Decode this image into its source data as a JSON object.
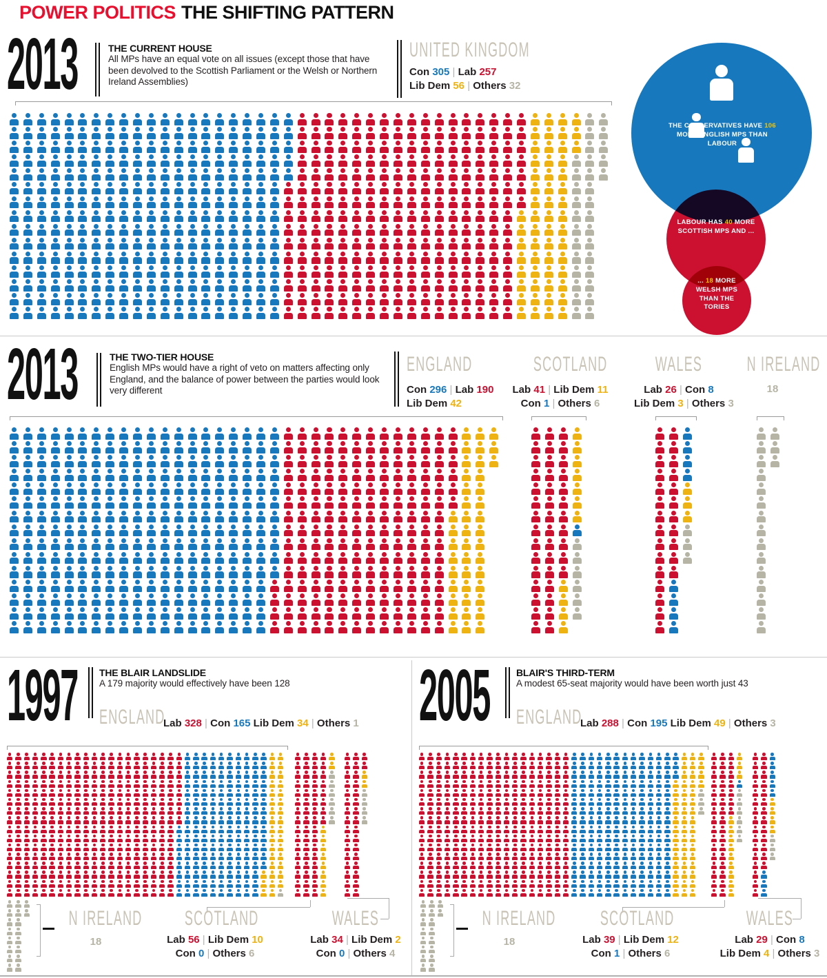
{
  "title": {
    "part1": "POWER POLITICS",
    "part2": "THE SHIFTING PATTERN"
  },
  "colors": {
    "con": "#1878be",
    "lab": "#cb1030",
    "libdem": "#eeb211",
    "others": "#b5b4a5"
  },
  "s1": {
    "year": "2013",
    "heading": "THE CURRENT HOUSE",
    "desc": "All MPs have an equal vote on all issues (except those that have been devolved to the Scottish Parliament or the Welsh or Northern Ireland Assemblies)",
    "region": "UNITED KINGDOM",
    "line1": [
      [
        "Con ",
        "label"
      ],
      [
        "305",
        "con"
      ],
      [
        " | ",
        "sep"
      ],
      [
        "Lab ",
        "label"
      ],
      [
        "257",
        "lab"
      ]
    ],
    "line2": [
      [
        "Lib Dem ",
        "label"
      ],
      [
        "56",
        "libdem"
      ],
      [
        " | ",
        "sep"
      ],
      [
        "Others ",
        "label"
      ],
      [
        "32",
        "others"
      ]
    ]
  },
  "bubbles": {
    "con": [
      [
        "THE CONSERVATIVES HAVE ",
        "w"
      ],
      [
        "106",
        "hl"
      ],
      [
        " MORE ENGLISH MPS THAN LABOUR",
        "w"
      ]
    ],
    "lab1": [
      [
        "LABOUR HAS ",
        "w"
      ],
      [
        "40",
        "hl"
      ],
      [
        " MORE SCOTTISH MPS AND ...",
        "w"
      ]
    ],
    "lab2": [
      [
        "... ",
        "w"
      ],
      [
        "18",
        "hl"
      ],
      [
        " MORE WELSH MPS THAN THE TORIES",
        "w"
      ]
    ]
  },
  "s2": {
    "year": "2013",
    "heading": "THE TWO-TIER HOUSE",
    "desc": "English MPs would have a right of veto on matters affecting only England, and the balance of power between the parties would look very different",
    "england": {
      "header": "ENGLAND",
      "line1": [
        [
          "Con ",
          "label"
        ],
        [
          "296",
          "con"
        ],
        [
          " | ",
          "sep"
        ],
        [
          "Lab ",
          "label"
        ],
        [
          "190",
          "lab"
        ]
      ],
      "line2": [
        [
          "Lib Dem ",
          "label"
        ],
        [
          "42",
          "libdem"
        ]
      ]
    },
    "scotland": {
      "header": "SCOTLAND",
      "line1": [
        [
          "Lab ",
          "label"
        ],
        [
          "41",
          "lab"
        ],
        [
          " | ",
          "sep"
        ],
        [
          "Lib Dem ",
          "label"
        ],
        [
          "11",
          "libdem"
        ]
      ],
      "line2": [
        [
          "Con ",
          "label"
        ],
        [
          "1",
          "con"
        ],
        [
          " | ",
          "sep"
        ],
        [
          "Others ",
          "label"
        ],
        [
          "6",
          "others"
        ]
      ]
    },
    "wales": {
      "header": "WALES",
      "line1": [
        [
          "Lab ",
          "label"
        ],
        [
          "26",
          "lab"
        ],
        [
          " | ",
          "sep"
        ],
        [
          "Con ",
          "label"
        ],
        [
          "8",
          "con"
        ]
      ],
      "line2": [
        [
          "Lib Dem ",
          "label"
        ],
        [
          "3",
          "libdem"
        ],
        [
          " | ",
          "sep"
        ],
        [
          "Others ",
          "label"
        ],
        [
          "3",
          "others"
        ]
      ]
    },
    "nireland": {
      "header": "N IRELAND",
      "value": "18"
    }
  },
  "s97": {
    "year": "1997",
    "heading": "THE BLAIR LANDSLIDE",
    "desc": "A 179 majority would effectively have been 128",
    "england_header": "ENGLAND",
    "england_line": [
      [
        "Lab ",
        "label"
      ],
      [
        "328",
        "lab"
      ],
      [
        " | ",
        "sep"
      ],
      [
        "Con ",
        "label"
      ],
      [
        "165",
        "con"
      ],
      [
        "  ",
        "sep"
      ],
      [
        "Lib Dem ",
        "label"
      ],
      [
        "34",
        "libdem"
      ],
      [
        " | ",
        "sep"
      ],
      [
        "Others ",
        "label"
      ],
      [
        "1",
        "others"
      ]
    ],
    "nireland": {
      "header": "N IRELAND",
      "value": "18"
    },
    "scotland": {
      "header": "SCOTLAND",
      "line1": [
        [
          "Lab ",
          "label"
        ],
        [
          "56",
          "lab"
        ],
        [
          " | ",
          "sep"
        ],
        [
          "Lib Dem ",
          "label"
        ],
        [
          "10",
          "libdem"
        ]
      ],
      "line2": [
        [
          "Con ",
          "label"
        ],
        [
          "0",
          "con"
        ],
        [
          " | ",
          "sep"
        ],
        [
          "Others ",
          "label"
        ],
        [
          "6",
          "others"
        ]
      ]
    },
    "wales": {
      "header": "WALES",
      "line1": [
        [
          "Lab ",
          "label"
        ],
        [
          "34",
          "lab"
        ],
        [
          " | ",
          "sep"
        ],
        [
          "Lib Dem ",
          "label"
        ],
        [
          "2",
          "libdem"
        ]
      ],
      "line2": [
        [
          "Con ",
          "label"
        ],
        [
          "0",
          "con"
        ],
        [
          " | ",
          "sep"
        ],
        [
          "Others ",
          "label"
        ],
        [
          "4",
          "others"
        ]
      ]
    }
  },
  "s05": {
    "year": "2005",
    "heading": "BLAIR'S THIRD-TERM",
    "desc": "A modest 65-seat majority would have been worth just 43",
    "england_header": "ENGLAND",
    "england_line": [
      [
        "Lab ",
        "label"
      ],
      [
        "288",
        "lab"
      ],
      [
        " | ",
        "sep"
      ],
      [
        "Con ",
        "label"
      ],
      [
        "195",
        "con"
      ],
      [
        "  ",
        "sep"
      ],
      [
        "Lib Dem ",
        "label"
      ],
      [
        "49",
        "libdem"
      ],
      [
        " | ",
        "sep"
      ],
      [
        "Others ",
        "label"
      ],
      [
        "3",
        "others"
      ]
    ],
    "nireland": {
      "header": "N IRELAND",
      "value": "18"
    },
    "scotland": {
      "header": "SCOTLAND",
      "line1": [
        [
          "Lab ",
          "label"
        ],
        [
          "39",
          "lab"
        ],
        [
          " | ",
          "sep"
        ],
        [
          "Lib Dem ",
          "label"
        ],
        [
          "12",
          "libdem"
        ]
      ],
      "line2": [
        [
          "Con ",
          "label"
        ],
        [
          "1",
          "con"
        ],
        [
          " | ",
          "sep"
        ],
        [
          "Others ",
          "label"
        ],
        [
          "6",
          "others"
        ]
      ]
    },
    "wales": {
      "header": "WALES",
      "line1": [
        [
          "Lab ",
          "label"
        ],
        [
          "29",
          "lab"
        ],
        [
          " | ",
          "sep"
        ],
        [
          "Con ",
          "label"
        ],
        [
          "8",
          "con"
        ]
      ],
      "line2": [
        [
          "Lib Dem ",
          "label"
        ],
        [
          "4",
          "libdem"
        ],
        [
          " | ",
          "sep"
        ],
        [
          "Others ",
          "label"
        ],
        [
          "3",
          "others"
        ]
      ]
    }
  },
  "chart_data": [
    {
      "id": "uk2013",
      "type": "pictogram",
      "title": "United Kingdom 2013 - current house",
      "rows": 15,
      "series": [
        [
          "con",
          305
        ],
        [
          "lab",
          257
        ],
        [
          "libdem",
          56
        ],
        [
          "others",
          32
        ]
      ]
    },
    {
      "id": "eng2013",
      "type": "pictogram",
      "title": "England 2013 - two-tier house",
      "rows": 15,
      "series": [
        [
          "con",
          296
        ],
        [
          "lab",
          190
        ],
        [
          "libdem",
          42
        ]
      ]
    },
    {
      "id": "sco2013",
      "type": "pictogram",
      "title": "Scotland 2013",
      "rows": 15,
      "series": [
        [
          "lab",
          41
        ],
        [
          "libdem",
          11
        ],
        [
          "con",
          1
        ],
        [
          "others",
          6
        ]
      ]
    },
    {
      "id": "wal2013",
      "type": "pictogram",
      "title": "Wales 2013",
      "rows": 15,
      "series": [
        [
          "lab",
          26
        ],
        [
          "con",
          8
        ],
        [
          "libdem",
          3
        ],
        [
          "others",
          3
        ]
      ]
    },
    {
      "id": "ni2013",
      "type": "pictogram",
      "title": "N Ireland 2013",
      "rows": 15,
      "series": [
        [
          "others",
          18
        ]
      ]
    },
    {
      "id": "eng1997",
      "type": "pictogram",
      "title": "England 1997",
      "rows": 16,
      "series": [
        [
          "lab",
          328
        ],
        [
          "con",
          165
        ],
        [
          "libdem",
          34
        ],
        [
          "others",
          1
        ]
      ]
    },
    {
      "id": "sco1997",
      "type": "pictogram",
      "title": "Scotland 1997",
      "rows": 16,
      "series": [
        [
          "lab",
          56
        ],
        [
          "libdem",
          10
        ],
        [
          "con",
          0
        ],
        [
          "others",
          6
        ]
      ]
    },
    {
      "id": "wal1997",
      "type": "pictogram",
      "title": "Wales 1997",
      "rows": 16,
      "series": [
        [
          "lab",
          34
        ],
        [
          "libdem",
          2
        ],
        [
          "con",
          0
        ],
        [
          "others",
          4
        ]
      ]
    },
    {
      "id": "ni1997",
      "type": "pictogram",
      "title": "N Ireland 1997",
      "rows": 8,
      "series": [
        [
          "others",
          18
        ]
      ]
    },
    {
      "id": "eng2005",
      "type": "pictogram",
      "title": "England 2005",
      "rows": 16,
      "series": [
        [
          "lab",
          288
        ],
        [
          "con",
          195
        ],
        [
          "libdem",
          49
        ],
        [
          "others",
          3
        ]
      ]
    },
    {
      "id": "sco2005",
      "type": "pictogram",
      "title": "Scotland 2005",
      "rows": 16,
      "series": [
        [
          "lab",
          39
        ],
        [
          "libdem",
          12
        ],
        [
          "con",
          1
        ],
        [
          "others",
          6
        ]
      ]
    },
    {
      "id": "wal2005",
      "type": "pictogram",
      "title": "Wales 2005",
      "rows": 16,
      "series": [
        [
          "lab",
          29
        ],
        [
          "con",
          8
        ],
        [
          "libdem",
          4
        ],
        [
          "others",
          3
        ]
      ]
    },
    {
      "id": "ni2005",
      "type": "pictogram",
      "title": "N Ireland 2005",
      "rows": 8,
      "series": [
        [
          "others",
          18
        ]
      ]
    }
  ]
}
